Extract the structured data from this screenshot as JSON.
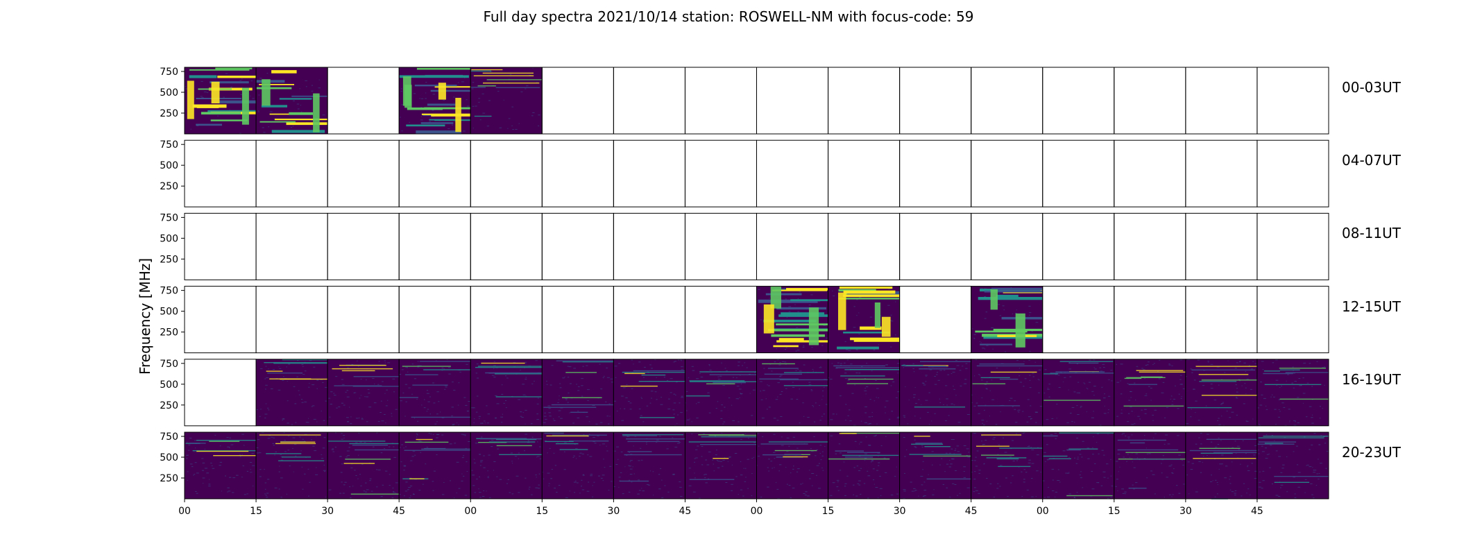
{
  "title": "Full day spectra 2021/10/14 station: ROSWELL-NM with focus-code: 59",
  "ylabel": "Frequency [MHz]",
  "chart_data": {
    "type": "heatmap",
    "title": "Full day spectra 2021/10/14 station: ROSWELL-NM with focus-code: 59",
    "ylabel": "Frequency [MHz]",
    "ylim": [
      0,
      800
    ],
    "y_ticks": [
      250,
      500,
      750
    ],
    "x_tick_labels": [
      "00",
      "15",
      "30",
      "45",
      "00",
      "15",
      "30",
      "45",
      "00",
      "15",
      "30",
      "45",
      "00",
      "15",
      "30",
      "45"
    ],
    "colormap": "viridis",
    "colors": {
      "background": "#440154",
      "low": "#3b528b",
      "mid": "#21908d",
      "high": "#5ec962",
      "peak": "#fde725"
    },
    "rows": [
      {
        "label": "00-03UT",
        "panels": [
          "strong-bands",
          "strong-bands",
          "empty",
          "strong-bands",
          "dense",
          "empty",
          "empty",
          "empty",
          "empty",
          "empty",
          "empty",
          "empty",
          "empty",
          "empty",
          "empty",
          "empty"
        ]
      },
      {
        "label": "04-07UT",
        "panels": [
          "empty",
          "empty",
          "empty",
          "empty",
          "empty",
          "empty",
          "empty",
          "empty",
          "empty",
          "empty",
          "empty",
          "empty",
          "empty",
          "empty",
          "empty",
          "empty"
        ]
      },
      {
        "label": "08-11UT",
        "panels": [
          "empty",
          "empty",
          "empty",
          "empty",
          "empty",
          "empty",
          "empty",
          "empty",
          "empty",
          "empty",
          "empty",
          "empty",
          "empty",
          "empty",
          "empty",
          "empty"
        ]
      },
      {
        "label": "12-15UT",
        "panels": [
          "empty",
          "empty",
          "empty",
          "empty",
          "empty",
          "empty",
          "empty",
          "empty",
          "strong-bands",
          "strong-bands",
          "empty",
          "strong-bands",
          "empty",
          "empty",
          "empty",
          "empty"
        ]
      },
      {
        "label": "16-19UT",
        "panels": [
          "empty",
          "sparse",
          "sparse",
          "sparse",
          "sparse",
          "sparse",
          "sparse",
          "sparse",
          "sparse",
          "sparse",
          "sparse",
          "sparse",
          "sparse",
          "sparse",
          "sparse",
          "sparse"
        ]
      },
      {
        "label": "20-23UT",
        "panels": [
          "sparse",
          "sparse",
          "sparse",
          "sparse",
          "sparse",
          "sparse",
          "sparse",
          "sparse",
          "sparse",
          "sparse",
          "sparse",
          "sparse",
          "sparse",
          "sparse",
          "sparse",
          "sparse"
        ]
      }
    ]
  }
}
